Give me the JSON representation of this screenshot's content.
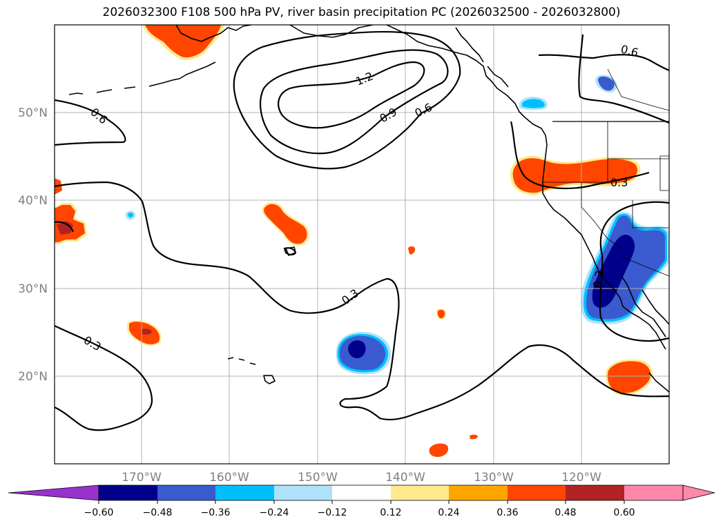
{
  "title": "2026032300 F108 500 hPa PV, river basin precipitation PC (2026032500 - 2026032800)",
  "map": {
    "lat_labels": [
      "50°N",
      "40°N",
      "30°N",
      "20°N"
    ],
    "lon_labels": [
      "170°W",
      "160°W",
      "150°W",
      "140°W",
      "130°W",
      "120°W"
    ],
    "contour_labels": [
      "1.2",
      "0.9",
      "0.6",
      "0.6",
      "0.6",
      "0.3",
      "0.3",
      "0.3",
      "0.3"
    ],
    "colors": {
      "grid": "#b0b0b0",
      "contour": "#000000",
      "coast": "#000000"
    },
    "precip_colors": {
      "light_blue": "#aee2fa",
      "cyan": "#00bfff",
      "medium_blue": "#3a5bcf",
      "navy": "#00008b",
      "yellow": "#ffe98c",
      "orange": "#ffa500",
      "orange_red": "#ff4500",
      "firebrick": "#b22222"
    }
  },
  "colorbar": {
    "ticks": [
      "−0.60",
      "−0.48",
      "−0.36",
      "−0.24",
      "−0.12",
      "0.12",
      "0.24",
      "0.36",
      "0.48",
      "0.60"
    ],
    "colors": [
      "#9932cc",
      "#00008b",
      "#3a5bcf",
      "#00bfff",
      "#aee2fa",
      "#ffffff",
      "#ffe98c",
      "#ffa500",
      "#ff4500",
      "#b22222",
      "#ff88aa"
    ]
  }
}
